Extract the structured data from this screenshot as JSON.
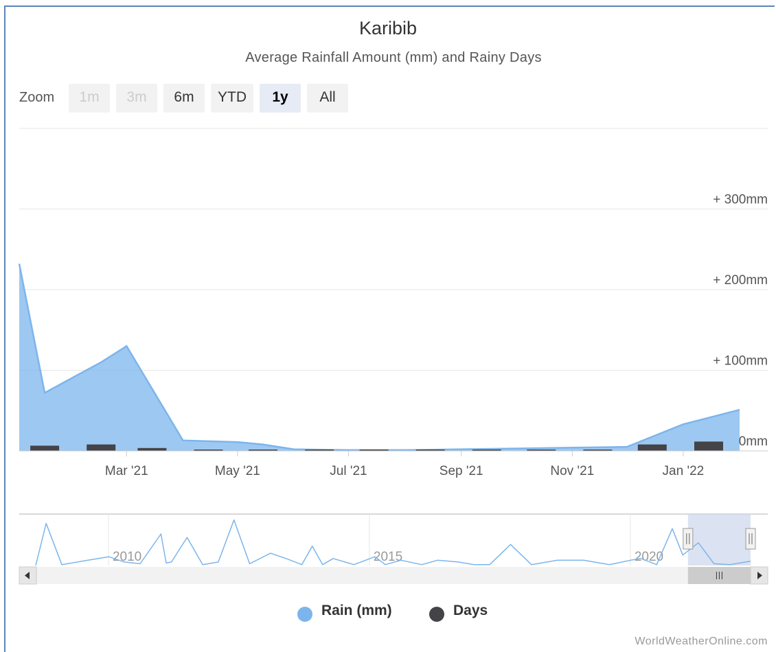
{
  "chart_data": {
    "type": "area",
    "title": "Karibib",
    "subtitle": "Average Rainfall Amount (mm) and Rainy Days",
    "zoom": {
      "label": "Zoom",
      "buttons": [
        {
          "label": "1m",
          "state": "disabled"
        },
        {
          "label": "3m",
          "state": "disabled"
        },
        {
          "label": "6m",
          "state": "normal"
        },
        {
          "label": "YTD",
          "state": "normal"
        },
        {
          "label": "1y",
          "state": "active"
        },
        {
          "label": "All",
          "state": "normal"
        }
      ]
    },
    "x_tick_labels": [
      "Mar '21",
      "May '21",
      "Jul '21",
      "Sep '21",
      "Nov '21",
      "Jan '22"
    ],
    "y_tick_labels": [
      "0mm",
      "+ 100mm",
      "+ 200mm",
      "+ 300mm"
    ],
    "y_ticks": [
      0,
      100,
      200,
      300
    ],
    "ylim": [
      0,
      400
    ],
    "series": [
      {
        "name": "Rain (mm)",
        "type": "area",
        "color": "#7cb5ec",
        "x": [
          "2021-01-01",
          "2021-01-15",
          "2021-02-15",
          "2021-03-01",
          "2021-04-01",
          "2021-05-01",
          "2021-05-15",
          "2021-06-01",
          "2021-07-01",
          "2021-08-01",
          "2021-09-01",
          "2021-10-01",
          "2021-11-01",
          "2021-12-01",
          "2022-01-01",
          "2022-02-01"
        ],
        "values": [
          232,
          72,
          110,
          130,
          13,
          11,
          8,
          2,
          1,
          1,
          2,
          3,
          4,
          5,
          33,
          51
        ]
      },
      {
        "name": "Days",
        "type": "column",
        "color": "#434348",
        "x": [
          "2021-01-15",
          "2021-02-15",
          "2021-03-15",
          "2021-04-15",
          "2021-05-15",
          "2021-06-15",
          "2021-07-15",
          "2021-08-15",
          "2021-09-15",
          "2021-10-15",
          "2021-11-15",
          "2021-12-15",
          "2022-01-15"
        ],
        "values": [
          9,
          11,
          5,
          2,
          0,
          0,
          0,
          0,
          0,
          1,
          2,
          11,
          16
        ]
      }
    ],
    "navigator": {
      "x_tick_labels": [
        "2010",
        "2015",
        "2020"
      ],
      "series_color": "#7cb5ec",
      "years": [
        2008.5,
        2008.7,
        2009,
        2009.5,
        2009.9,
        2010.2,
        2010.5,
        2010.9,
        2011,
        2011.1,
        2011.4,
        2011.7,
        2012,
        2012.3,
        2012.6,
        2013,
        2013.3,
        2013.6,
        2013.8,
        2014,
        2014.2,
        2014.6,
        2015,
        2015.2,
        2015.5,
        2015.9,
        2016.2,
        2016.6,
        2016.9,
        2017.2,
        2017.6,
        2018,
        2018.5,
        2019,
        2019.5,
        2019.9,
        2020.1,
        2020.4,
        2020.7,
        2020.9,
        2021.2,
        2021.5,
        2021.8,
        2022.0,
        2022.2
      ],
      "values": [
        0,
        240,
        5,
        30,
        50,
        20,
        10,
        180,
        15,
        20,
        160,
        5,
        20,
        260,
        10,
        70,
        40,
        5,
        110,
        5,
        40,
        5,
        50,
        5,
        30,
        5,
        30,
        20,
        5,
        5,
        120,
        5,
        30,
        30,
        5,
        30,
        40,
        5,
        210,
        60,
        130,
        10,
        5,
        15,
        25
      ],
      "selected_range": [
        "2021-01-01",
        "2022-02-01"
      ]
    },
    "legend": {
      "placement": "bottom-center",
      "items": [
        {
          "name": "Rain (mm)",
          "color": "#7cb5ec"
        },
        {
          "name": "Days",
          "color": "#434348"
        }
      ]
    },
    "credits": "WorldWeatherOnline.com"
  }
}
